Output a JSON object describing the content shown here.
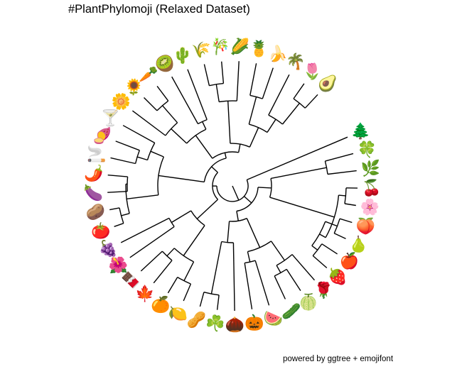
{
  "title": "#PlantPhylomoji (Relaxed Dataset)",
  "caption": "powered by ggtree + emojifont",
  "tips": [
    {
      "name": "evergreen-tree",
      "glyph": "🌲"
    },
    {
      "name": "four-leaf-clover",
      "glyph": "🍀"
    },
    {
      "name": "herb",
      "glyph": "🌿"
    },
    {
      "name": "cherries",
      "glyph": "🍒"
    },
    {
      "name": "cherry-blossom",
      "glyph": "🌸"
    },
    {
      "name": "peach",
      "glyph": "🍑"
    },
    {
      "name": "pear",
      "glyph": "🍐"
    },
    {
      "name": "red-apple",
      "glyph": "🍎"
    },
    {
      "name": "strawberry",
      "glyph": "🍓"
    },
    {
      "name": "rose",
      "glyph": "🌹"
    },
    {
      "name": "melon",
      "glyph": "🍈"
    },
    {
      "name": "cucumber",
      "glyph": "🥒"
    },
    {
      "name": "watermelon",
      "glyph": "🍉"
    },
    {
      "name": "jack-o-lantern",
      "glyph": "🎃"
    },
    {
      "name": "chestnut",
      "glyph": "🌰"
    },
    {
      "name": "shamrock",
      "glyph": "☘️"
    },
    {
      "name": "peanuts",
      "glyph": "🥜"
    },
    {
      "name": "lemon",
      "glyph": "🍋"
    },
    {
      "name": "tangerine",
      "glyph": "🍊"
    },
    {
      "name": "maple-leaf",
      "glyph": "🍁"
    },
    {
      "name": "chocolate-bar",
      "glyph": "🍫"
    },
    {
      "name": "hibiscus",
      "glyph": "🌺"
    },
    {
      "name": "grapes",
      "glyph": "🍇"
    },
    {
      "name": "tomato",
      "glyph": "🍅"
    },
    {
      "name": "potato",
      "glyph": "🥔"
    },
    {
      "name": "eggplant",
      "glyph": "🍆"
    },
    {
      "name": "hot-pepper",
      "glyph": "🌶️"
    },
    {
      "name": "cigarette",
      "glyph": "🚬"
    },
    {
      "name": "sweet-potato",
      "glyph": "🍠"
    },
    {
      "name": "cocktail",
      "glyph": "🍸"
    },
    {
      "name": "blossom",
      "glyph": "🌼"
    },
    {
      "name": "sunflower",
      "glyph": "🌻"
    },
    {
      "name": "carrot",
      "glyph": "🥕"
    },
    {
      "name": "kiwi",
      "glyph": "🥝"
    },
    {
      "name": "cactus",
      "glyph": "🌵"
    },
    {
      "name": "rice-sheaf",
      "glyph": "🌾"
    },
    {
      "name": "tanabata-tree",
      "glyph": "🎋"
    },
    {
      "name": "corn",
      "glyph": "🌽"
    },
    {
      "name": "pineapple",
      "glyph": "🍍"
    },
    {
      "name": "banana",
      "glyph": "🍌"
    },
    {
      "name": "palm-tree",
      "glyph": "🌴"
    },
    {
      "name": "tulip",
      "glyph": "🌷"
    },
    {
      "name": "avocado",
      "glyph": "🥑"
    }
  ]
}
